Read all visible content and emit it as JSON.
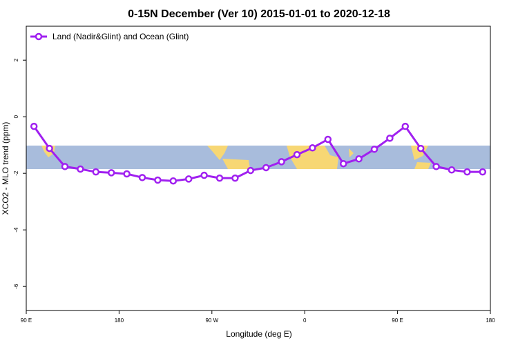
{
  "chart_data": {
    "type": "line",
    "title": "0-15N December (Ver 10)   2015-01-01 to 2020-12-18",
    "xlabel": "Longitude (deg E)",
    "ylabel": "XCO2 - MLO trend (ppm)",
    "x": [
      97.5,
      112.5,
      127.5,
      142.5,
      157.5,
      172.5,
      187.5,
      202.5,
      217.5,
      232.5,
      247.5,
      262.5,
      277.5,
      292.5,
      307.5,
      322.5,
      337.5,
      352.5,
      367.5,
      382.5,
      397.5,
      412.5,
      427.5,
      442.5,
      457.5,
      472.5,
      487.5,
      502.5,
      517.5,
      532.5
    ],
    "series": [
      {
        "name": "Land (Nadir&Glint) and Ocean (Glint)",
        "color": "#a020f0",
        "values": [
          -0.34,
          -1.12,
          -1.76,
          -1.85,
          -1.95,
          -1.98,
          -2.02,
          -2.15,
          -2.24,
          -2.27,
          -2.2,
          -2.07,
          -2.17,
          -2.17,
          -1.9,
          -1.8,
          -1.59,
          -1.34,
          -1.1,
          -0.8,
          -1.66,
          -1.49,
          -1.15,
          -0.76,
          -0.34,
          -1.12,
          -1.76,
          -1.88,
          -1.95,
          -1.95
        ]
      }
    ],
    "xlim": [
      90,
      540
    ],
    "xticks": [
      {
        "value": 90,
        "label": "90 E"
      },
      {
        "value": 180,
        "label": "180"
      },
      {
        "value": 270,
        "label": "90 W"
      },
      {
        "value": 360,
        "label": "0"
      },
      {
        "value": 450,
        "label": "90 E"
      },
      {
        "value": 540,
        "label": "180"
      }
    ],
    "ylim": [
      -6.85,
      3.2
    ],
    "yticks": [
      -6,
      -4,
      -2,
      0,
      2
    ],
    "legend": "top-left"
  }
}
